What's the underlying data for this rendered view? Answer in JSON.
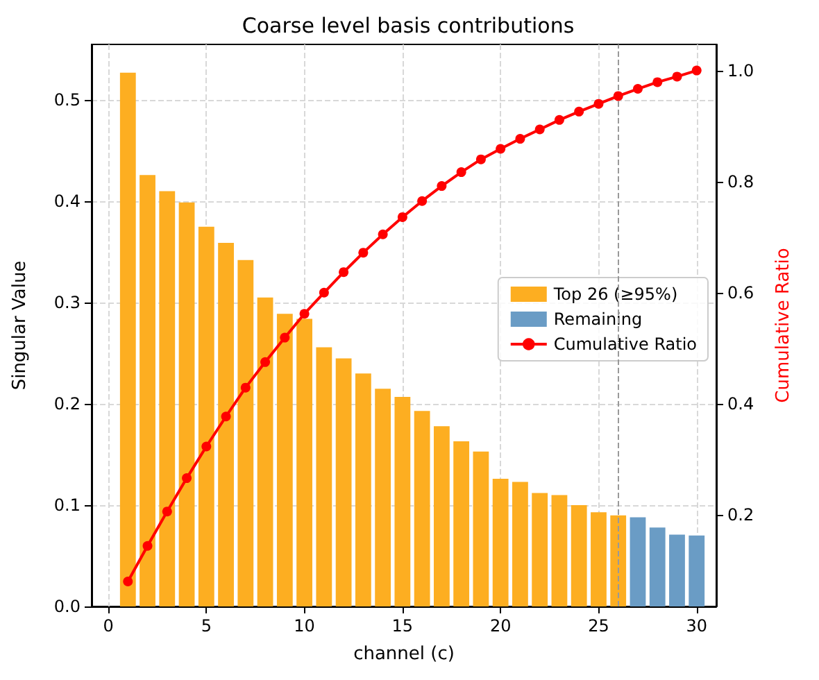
{
  "chart_data": {
    "type": "bar",
    "title": "Coarse level basis contributions",
    "xlabel": "channel (c)",
    "ylabel": "Singular Value",
    "y2label": "Cumulative Ratio",
    "xlim": [
      -0.85,
      31.0
    ],
    "xticks": [
      0,
      5,
      10,
      15,
      20,
      25,
      30
    ],
    "ylim": [
      0,
      0.555
    ],
    "yticks": [
      {
        "value": 0,
        "label": "0.0"
      },
      0.1,
      0.2,
      0.3,
      0.4,
      0.5
    ],
    "y2lim": [
      0.035,
      1.047
    ],
    "y2ticks": [
      0.2,
      0.4,
      0.6,
      0.8,
      {
        "value": 1,
        "label": "1.0"
      }
    ],
    "series": [
      {
        "name": "Top 26 (≥95%)",
        "color": "#fdae21",
        "x": [
          1,
          2,
          3,
          4,
          5,
          6,
          7,
          8,
          9,
          10,
          11,
          12,
          13,
          14,
          15,
          16,
          17,
          18,
          19,
          20,
          21,
          22,
          23,
          24,
          25,
          26
        ],
        "values": [
          0.527,
          0.426,
          0.41,
          0.399,
          0.375,
          0.359,
          0.342,
          0.305,
          0.289,
          0.284,
          0.256,
          0.245,
          0.23,
          0.215,
          0.207,
          0.193,
          0.178,
          0.163,
          0.153,
          0.126,
          0.123,
          0.112,
          0.11,
          0.1,
          0.093,
          0.09
        ]
      },
      {
        "name": "Remaining",
        "color": "#6a9cc5",
        "x": [
          27,
          28,
          29,
          30
        ],
        "values": [
          0.088,
          0.078,
          0.071,
          0.07
        ]
      },
      {
        "name": "Cumulative Ratio",
        "type": "line",
        "axis": "y2",
        "color": "#ff0000",
        "marker": "circle",
        "x": [
          1,
          2,
          3,
          4,
          5,
          6,
          7,
          8,
          9,
          10,
          11,
          12,
          13,
          14,
          15,
          16,
          17,
          18,
          19,
          20,
          21,
          22,
          23,
          24,
          25,
          26,
          27,
          28,
          29,
          30
        ],
        "values": [
          0.08,
          0.144,
          0.206,
          0.266,
          0.323,
          0.377,
          0.429,
          0.475,
          0.519,
          0.562,
          0.6,
          0.637,
          0.672,
          0.705,
          0.736,
          0.765,
          0.792,
          0.817,
          0.84,
          0.859,
          0.877,
          0.894,
          0.911,
          0.926,
          0.94,
          0.954,
          0.967,
          0.979,
          0.989,
          1.0
        ]
      }
    ],
    "ref_lines": [
      {
        "axis": "x",
        "value": 26,
        "color": "#999999",
        "line_style": "dashed"
      }
    ],
    "grid": true,
    "legend": "right"
  }
}
